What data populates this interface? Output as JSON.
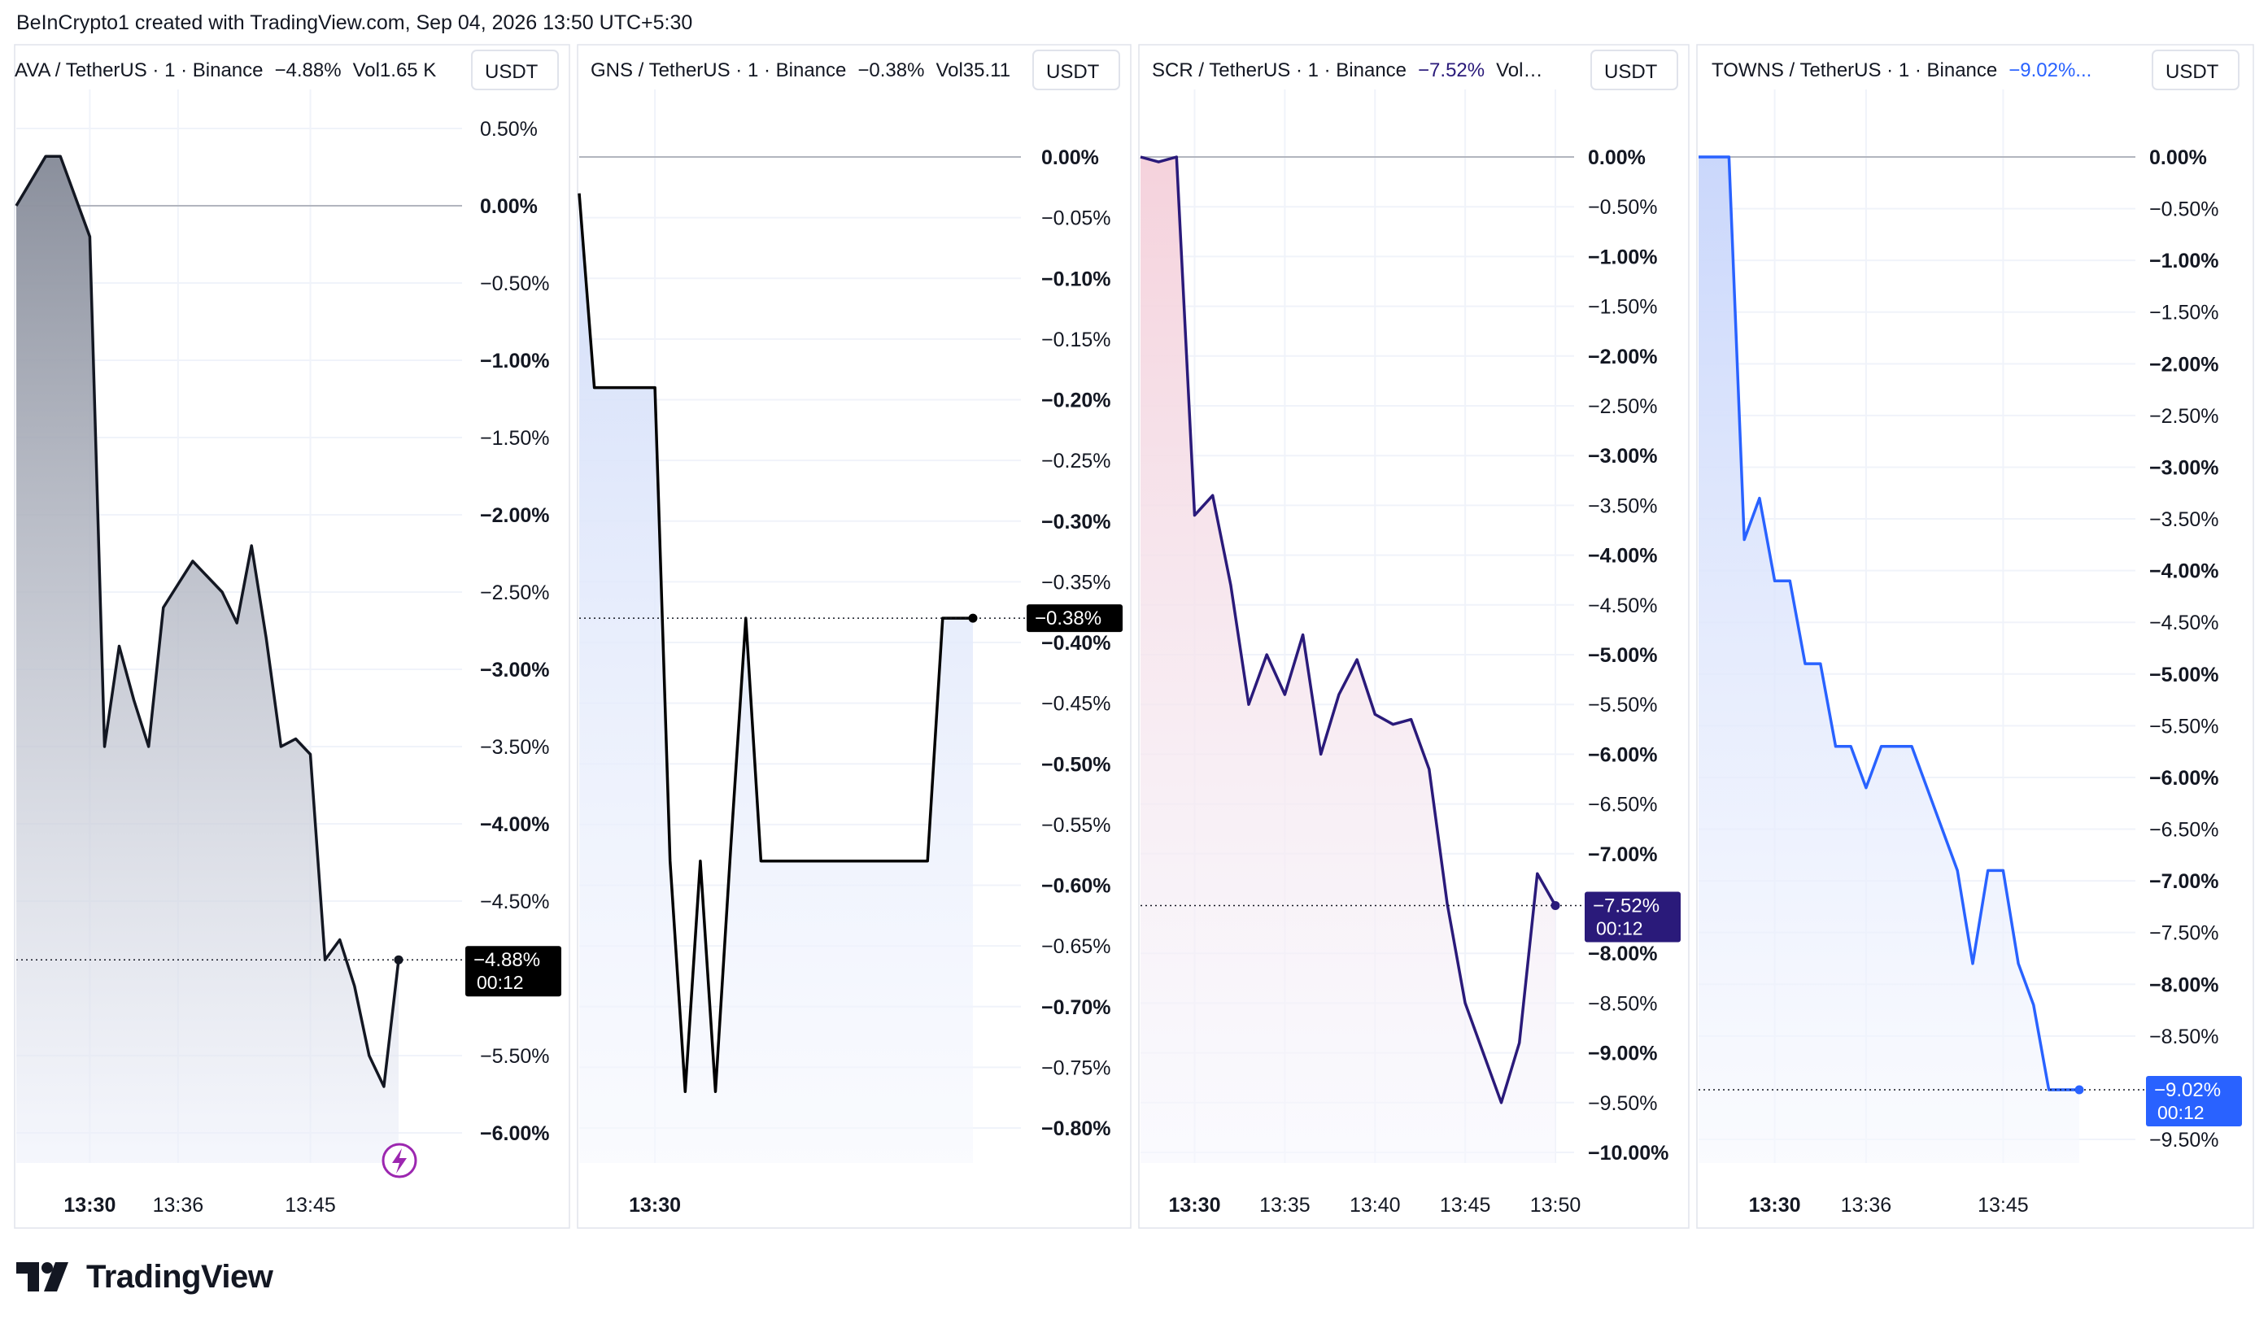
{
  "header": {
    "credit": "BeInCrypto1 created with TradingView.com, Sep 04, 2026 13:50 UTC+5:30"
  },
  "brand": {
    "name": "TradingView"
  },
  "chart_data": [
    {
      "type": "area",
      "symbol": "AVA / TetherUS · 1 · Binance",
      "change": "−4.88%",
      "volume": "Vol1.65 K",
      "currency": "USDT",
      "last_label": "−4.88%",
      "countdown": "00:12",
      "line_color": "#131722",
      "fill_top": "#8a8f9c",
      "fill_bottom": "#eef1fb",
      "badge_color": "#000000",
      "ylim": [
        -6.25,
        0.75
      ],
      "y_ticks": [
        0.5,
        0,
        -0.5,
        -1,
        -1.5,
        -2,
        -2.5,
        -3,
        -3.5,
        -4,
        -4.5,
        -5.5,
        -6
      ],
      "y_tick_labels": [
        "0.50%",
        "0.00%",
        "−0.50%",
        "−1.00%",
        "−1.50%",
        "−2.00%",
        "−2.50%",
        "−3.00%",
        "−3.50%",
        "−4.00%",
        "−4.50%",
        "−5.50%",
        "−6.00%"
      ],
      "bold_ticks": [
        0,
        -1,
        -2,
        -3,
        -4,
        -6
      ],
      "xlim": [
        1,
        30
      ],
      "x_ticks": [
        6,
        12,
        21
      ],
      "x_tick_labels": [
        "13:30",
        "13:36",
        "13:45"
      ],
      "x_bold": [
        true,
        false,
        false
      ],
      "x": [
        1,
        3,
        4,
        6,
        7,
        8,
        9,
        10,
        11,
        12,
        13,
        14,
        15,
        16,
        17,
        18,
        19,
        20,
        21,
        22,
        23,
        24,
        25,
        26,
        27
      ],
      "y": [
        0,
        0.32,
        0.32,
        -0.2,
        -3.5,
        -2.85,
        -3.2,
        -3.5,
        -2.6,
        -2.45,
        -2.3,
        -2.4,
        -2.5,
        -2.7,
        -2.2,
        -2.8,
        -3.5,
        -3.45,
        -3.55,
        -4.88,
        -4.75,
        -5.05,
        -5.5,
        -5.7,
        -4.88
      ],
      "last": -4.88,
      "flash_icon": true
    },
    {
      "type": "area",
      "symbol": "GNS / TetherUS · 1 · Binance",
      "change": "−0.38%",
      "volume": "Vol35.11",
      "currency": "USDT",
      "last_label": "−0.38%",
      "countdown": "",
      "line_color": "#000000",
      "fill_top": "#d3def9",
      "fill_bottom": "#f6f8fe",
      "badge_color": "#000000",
      "ylim": [
        -0.8,
        0.0
      ],
      "y_ticks": [
        0,
        -0.05,
        -0.1,
        -0.15,
        -0.2,
        -0.25,
        -0.3,
        -0.35,
        -0.4,
        -0.45,
        -0.5,
        -0.55,
        -0.6,
        -0.65,
        -0.7,
        -0.75,
        -0.8
      ],
      "y_tick_labels": [
        "0.00%",
        "−0.05%",
        "−0.10%",
        "−0.15%",
        "−0.20%",
        "−0.25%",
        "−0.30%",
        "−0.35%",
        "−0.40%",
        "−0.45%",
        "−0.50%",
        "−0.55%",
        "−0.60%",
        "−0.65%",
        "−0.70%",
        "−0.75%",
        "−0.80%"
      ],
      "bold_ticks": [
        0,
        -0.1,
        -0.2,
        -0.3,
        -0.4,
        -0.5,
        -0.6,
        -0.7,
        -0.8
      ],
      "xlim": [
        1,
        30
      ],
      "x_ticks": [
        6
      ],
      "x_tick_labels": [
        "13:30"
      ],
      "x_bold": [
        true
      ],
      "x": [
        1,
        2,
        6,
        7,
        8,
        9,
        10,
        11,
        12,
        13,
        14,
        15,
        16,
        17,
        18,
        19,
        20,
        21,
        22,
        23,
        24,
        25,
        26,
        27
      ],
      "y": [
        -0.03,
        -0.19,
        -0.19,
        -0.58,
        -0.77,
        -0.58,
        -0.77,
        -0.57,
        -0.38,
        -0.58,
        -0.58,
        -0.58,
        -0.58,
        -0.58,
        -0.58,
        -0.58,
        -0.58,
        -0.58,
        -0.58,
        -0.58,
        -0.58,
        -0.38,
        -0.38,
        -0.38
      ],
      "last": -0.38,
      "flash_icon": false
    },
    {
      "type": "area",
      "symbol": "SCR / TetherUS · 1 · Binance",
      "change": "−7.52%",
      "volume": "Vol…",
      "currency": "USDT",
      "last_label": "−7.52%",
      "countdown": "00:12",
      "line_color": "#2a1a7a",
      "fill_top": "#f5d2dc",
      "fill_bottom": "#f6f7fe",
      "badge_color": "#2a1a7a",
      "ylim": [
        -10.0,
        0.0
      ],
      "y_ticks": [
        0,
        -0.5,
        -1,
        -1.5,
        -2,
        -2.5,
        -3,
        -3.5,
        -4,
        -4.5,
        -5,
        -5.5,
        -6,
        -6.5,
        -7,
        -8,
        -8.5,
        -9,
        -9.5,
        -10
      ],
      "y_tick_labels": [
        "0.00%",
        "−0.50%",
        "−1.00%",
        "−1.50%",
        "−2.00%",
        "−2.50%",
        "−3.00%",
        "−3.50%",
        "−4.00%",
        "−4.50%",
        "−5.00%",
        "−5.50%",
        "−6.00%",
        "−6.50%",
        "−7.00%",
        "−8.00%",
        "−8.50%",
        "−9.00%",
        "−9.50%",
        "−10.00%"
      ],
      "bold_ticks": [
        0,
        -1,
        -2,
        -3,
        -4,
        -5,
        -6,
        -7,
        -8,
        -9,
        -10
      ],
      "xlim": [
        1,
        24
      ],
      "x_ticks": [
        4,
        9,
        14,
        19,
        24
      ],
      "x_tick_labels": [
        "13:30",
        "13:35",
        "13:40",
        "13:45",
        "13:50"
      ],
      "x_bold": [
        true,
        false,
        false,
        false,
        false
      ],
      "x": [
        1,
        2,
        3,
        4,
        5,
        6,
        7,
        8,
        9,
        10,
        11,
        12,
        13,
        14,
        15,
        16,
        17,
        18,
        19,
        20,
        21,
        22,
        23,
        24
      ],
      "y": [
        0,
        -0.05,
        0,
        -3.6,
        -3.4,
        -4.3,
        -5.5,
        -5.0,
        -5.4,
        -4.8,
        -6.0,
        -5.4,
        -5.05,
        -5.6,
        -5.7,
        -5.65,
        -6.15,
        -7.5,
        -8.5,
        -9.0,
        -9.5,
        -8.9,
        -7.2,
        -7.52
      ],
      "last": -7.52,
      "flash_icon": false
    },
    {
      "type": "area",
      "symbol": "TOWNS / TetherUS · 1 · Binance",
      "change": "−9.02%...",
      "volume": "",
      "currency": "USDT",
      "last_label": "−9.02%",
      "countdown": "00:12",
      "line_color": "#2962ff",
      "fill_top": "#cad7fb",
      "fill_bottom": "#f6f8fe",
      "badge_color": "#2962ff",
      "ylim": [
        -9.5,
        0.0
      ],
      "y_ticks": [
        0,
        -0.5,
        -1,
        -1.5,
        -2,
        -2.5,
        -3,
        -3.5,
        -4,
        -4.5,
        -5,
        -5.5,
        -6,
        -6.5,
        -7,
        -7.5,
        -8,
        -8.5,
        -9.5
      ],
      "y_tick_labels": [
        "0.00%",
        "−0.50%",
        "−1.00%",
        "−1.50%",
        "−2.00%",
        "−2.50%",
        "−3.00%",
        "−3.50%",
        "−4.00%",
        "−4.50%",
        "−5.00%",
        "−5.50%",
        "−6.00%",
        "−6.50%",
        "−7.00%",
        "−7.50%",
        "−8.00%",
        "−8.50%",
        "−9.50%"
      ],
      "bold_ticks": [
        0,
        -1,
        -2,
        -3,
        -4,
        -5,
        -6,
        -7,
        -8
      ],
      "xlim": [
        1,
        30
      ],
      "x_ticks": [
        6,
        12,
        21
      ],
      "x_tick_labels": [
        "13:30",
        "13:36",
        "13:45"
      ],
      "x_bold": [
        true,
        false,
        false
      ],
      "x": [
        1,
        3,
        4,
        5,
        6,
        7,
        8,
        9,
        10,
        11,
        12,
        13,
        14,
        15,
        16,
        17,
        18,
        19,
        20,
        21,
        22,
        23,
        24,
        25,
        26
      ],
      "y": [
        0,
        0,
        -3.7,
        -3.3,
        -4.1,
        -4.1,
        -4.9,
        -4.9,
        -5.7,
        -5.7,
        -6.1,
        -5.7,
        -5.7,
        -5.7,
        -6.1,
        -6.5,
        -6.9,
        -7.8,
        -6.9,
        -6.9,
        -7.8,
        -8.2,
        -9.02,
        -9.02,
        -9.02
      ],
      "last": -9.02,
      "flash_icon": false
    }
  ]
}
